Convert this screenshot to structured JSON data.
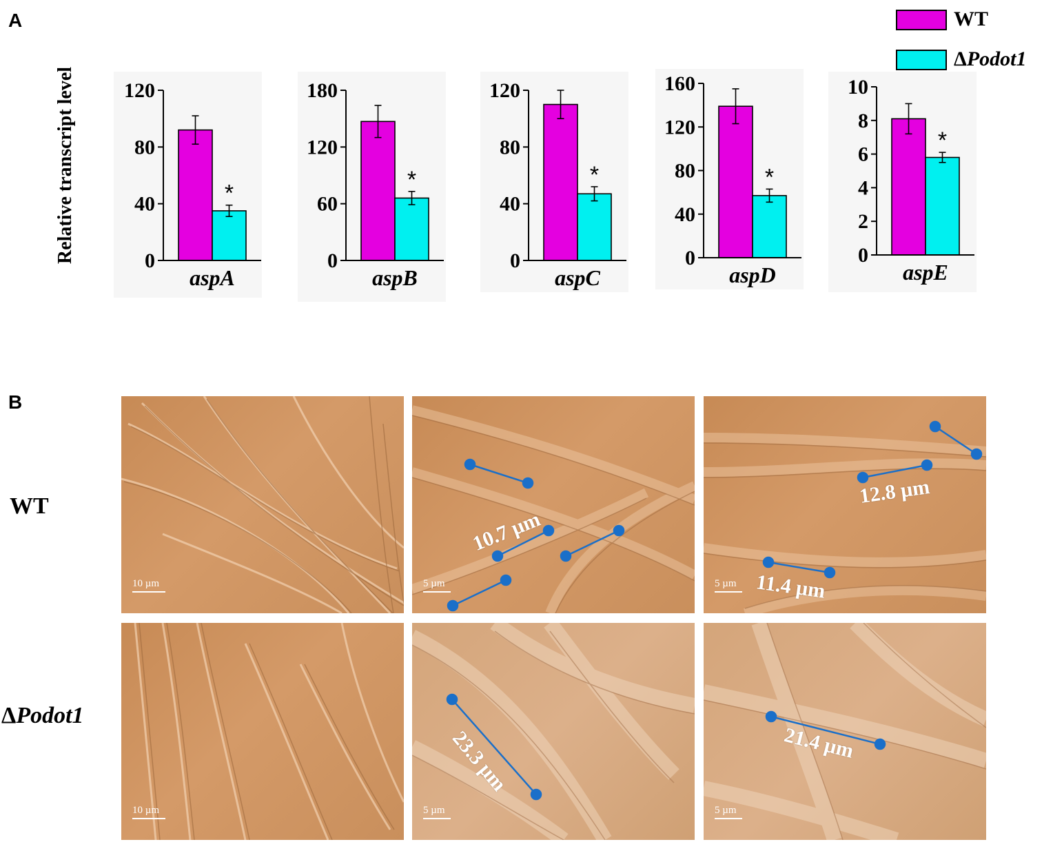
{
  "panels": {
    "a": "A",
    "b": "B"
  },
  "chart": {
    "ylabel": "Relative transcript level",
    "colors": {
      "wt": "#e400e0",
      "mutant": "#00f0f0"
    }
  },
  "legend": {
    "wt": "WT",
    "mutant_delta": "Δ",
    "mutant_name": "Podot1"
  },
  "chart_data": [
    {
      "type": "bar",
      "category": "aspA",
      "ylim": [
        0,
        120
      ],
      "ticks": [
        "0",
        "40",
        "80",
        "120"
      ],
      "series": [
        {
          "name": "WT",
          "value": 92,
          "error": 10
        },
        {
          "name": "ΔPodot1",
          "value": 35,
          "error": 4,
          "significance": "*"
        }
      ]
    },
    {
      "type": "bar",
      "category": "aspB",
      "ylim": [
        0,
        180
      ],
      "ticks": [
        "0",
        "60",
        "120",
        "180"
      ],
      "series": [
        {
          "name": "WT",
          "value": 147,
          "error": 17
        },
        {
          "name": "ΔPodot1",
          "value": 66,
          "error": 7,
          "significance": "*"
        }
      ]
    },
    {
      "type": "bar",
      "category": "aspC",
      "ylim": [
        0,
        120
      ],
      "ticks": [
        "0",
        "40",
        "80",
        "120"
      ],
      "series": [
        {
          "name": "WT",
          "value": 110,
          "error": 10
        },
        {
          "name": "ΔPodot1",
          "value": 47,
          "error": 5,
          "significance": "*"
        }
      ]
    },
    {
      "type": "bar",
      "category": "aspD",
      "ylim": [
        0,
        160
      ],
      "ticks": [
        "0",
        "40",
        "80",
        "120",
        "160"
      ],
      "series": [
        {
          "name": "WT",
          "value": 139,
          "error": 16
        },
        {
          "name": "ΔPodot1",
          "value": 57,
          "error": 6,
          "significance": "*"
        }
      ]
    },
    {
      "type": "bar",
      "category": "aspE",
      "ylim": [
        0,
        10
      ],
      "ticks": [
        "0",
        "2",
        "4",
        "6",
        "8",
        "10"
      ],
      "series": [
        {
          "name": "WT",
          "value": 8.1,
          "error": 0.9
        },
        {
          "name": "ΔPodot1",
          "value": 5.8,
          "error": 0.3,
          "significance": "*"
        }
      ]
    }
  ],
  "micrographs": {
    "row_labels": {
      "wt": "WT",
      "mutant_delta": "Δ",
      "mutant_name": "Podot1"
    },
    "scale_10": "10 µm",
    "scale_5": "5 µm",
    "measurements": {
      "wt_b": "10.7 µm",
      "wt_c1": "12.8 µm",
      "wt_c2": "11.4 µm",
      "mut_b": "23.3 µm",
      "mut_c": "21.4 µm"
    },
    "marker_color": "#1a6fc9"
  }
}
